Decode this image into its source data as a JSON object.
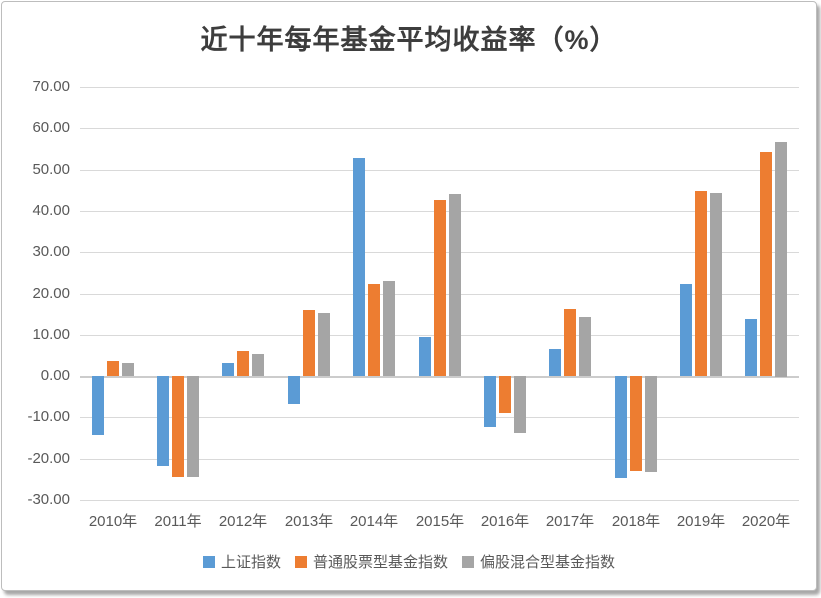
{
  "title": "近十年每年基金平均收益率（%）",
  "chart_data": {
    "type": "bar",
    "title": "近十年每年基金平均收益率（%）",
    "categories": [
      "2010年",
      "2011年",
      "2012年",
      "2013年",
      "2014年",
      "2015年",
      "2016年",
      "2017年",
      "2018年",
      "2019年",
      "2020年"
    ],
    "series": [
      {
        "name": "上证指数",
        "color": "#5B9BD5",
        "values": [
          -14.31,
          -21.68,
          3.17,
          -6.75,
          52.87,
          9.41,
          -12.31,
          6.56,
          -24.59,
          22.3,
          13.87
        ]
      },
      {
        "name": "普通股票型基金指数",
        "color": "#ED7D31",
        "values": [
          3.7,
          -24.4,
          6.1,
          16.0,
          22.2,
          42.6,
          -8.9,
          16.2,
          -23.1,
          44.8,
          54.2
        ]
      },
      {
        "name": "偏股混合型基金指数",
        "color": "#A5A5A5",
        "values": [
          3.1,
          -24.5,
          5.4,
          15.2,
          23.0,
          44.1,
          -13.7,
          14.2,
          -23.3,
          44.4,
          56.8
        ]
      }
    ],
    "ylim": [
      -30,
      70
    ],
    "ytick_values": [
      70,
      60,
      50,
      40,
      30,
      20,
      10,
      0,
      -10,
      -20,
      -30
    ],
    "ytick_labels": [
      "70.00",
      "60.00",
      "50.00",
      "40.00",
      "30.00",
      "20.00",
      "10.00",
      "0.00",
      "-10.00",
      "-20.00",
      "-30.00"
    ],
    "xlabel": "",
    "ylabel": "",
    "grid": true,
    "legend_position": "bottom",
    "gridline_color": "#D9D9D9",
    "axis_text_color": "#595959"
  }
}
